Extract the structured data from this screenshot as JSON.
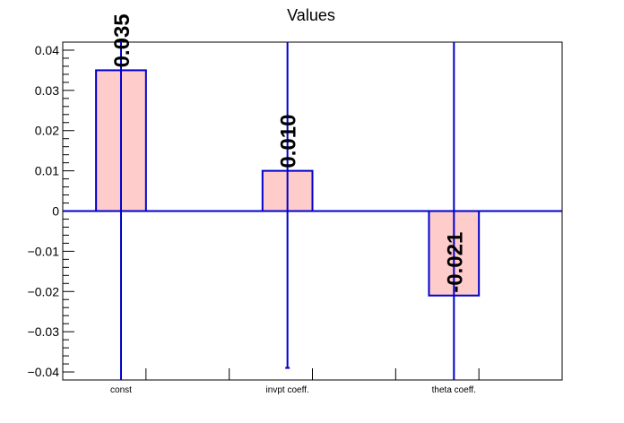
{
  "chart_data": {
    "type": "bar",
    "title": "Values",
    "xlabel": "",
    "ylabel": "",
    "categories": [
      "const",
      "invpt coeff.",
      "theta coeff."
    ],
    "values": [
      0.035,
      0.01,
      -0.021
    ],
    "value_labels": [
      "0.035",
      "0.010",
      "-0.021"
    ],
    "error_low": [
      -0.042,
      -0.039,
      -0.042
    ],
    "error_high": [
      0.042,
      0.042,
      0.042
    ],
    "ylim": [
      -0.042,
      0.042
    ],
    "yticks": [
      0.04,
      0.03,
      0.02,
      0.01,
      0,
      -0.01,
      -0.02,
      -0.03,
      -0.04
    ],
    "ytick_labels": [
      "0.04",
      "0.03",
      "0.02",
      "0.01",
      "0",
      "−0.01",
      "−0.02",
      "−0.03",
      "−0.04"
    ],
    "grid": false,
    "colors": {
      "bar_fill": "#ffcccc",
      "bar_edge": "#0000cc",
      "error": "#0000cc",
      "axis": "#000000"
    }
  }
}
